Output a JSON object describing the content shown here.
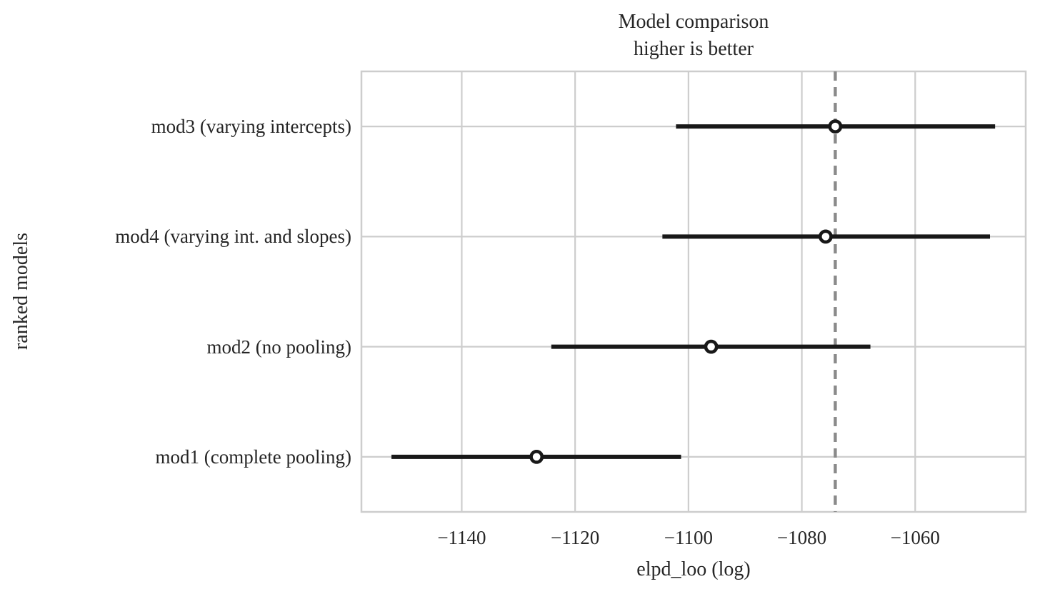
{
  "figure": {
    "title_line1": "Model comparison",
    "title_line2": "higher is better",
    "xlabel": "elpd_loo (log)",
    "ylabel": "ranked models"
  },
  "chart_data": {
    "type": "scatter",
    "subtype": "model-comparison-forest-plot (errorbar dot plot)",
    "title": "Model comparison\nhigher is better",
    "xlabel": "elpd_loo (log)",
    "ylabel": "ranked models",
    "xlim": [
      -1157.7,
      -1040.5
    ],
    "xticks": {
      "values": [
        -1140,
        -1120,
        -1100,
        -1080,
        -1060
      ],
      "labels": [
        "−1140",
        "−1120",
        "−1100",
        "−1080",
        "−1060"
      ]
    },
    "models": [
      {
        "label": "mod3 (varying intercepts)",
        "elpd_loo": -1074.1,
        "ci_lower": -1102.2,
        "ci_upper": -1045.9
      },
      {
        "label": "mod4 (varying int. and slopes)",
        "elpd_loo": -1075.8,
        "ci_lower": -1104.6,
        "ci_upper": -1046.8
      },
      {
        "label": "mod2 (no pooling)",
        "elpd_loo": -1096.0,
        "ci_lower": -1124.2,
        "ci_upper": -1067.9
      },
      {
        "label": "mod1 (complete pooling)",
        "elpd_loo": -1126.8,
        "ci_lower": -1152.4,
        "ci_upper": -1101.3
      }
    ],
    "reference_line_x": -1074.1,
    "grid": true,
    "legend": false
  },
  "style": {
    "background": "#ffffff",
    "text_color": "#262626",
    "grid_color": "#cdcdcd",
    "bar_color": "#181818",
    "marker_edge_color": "#181818",
    "marker_fill_color": "#ffffff",
    "reference_line_color": "#8a8a8a"
  }
}
